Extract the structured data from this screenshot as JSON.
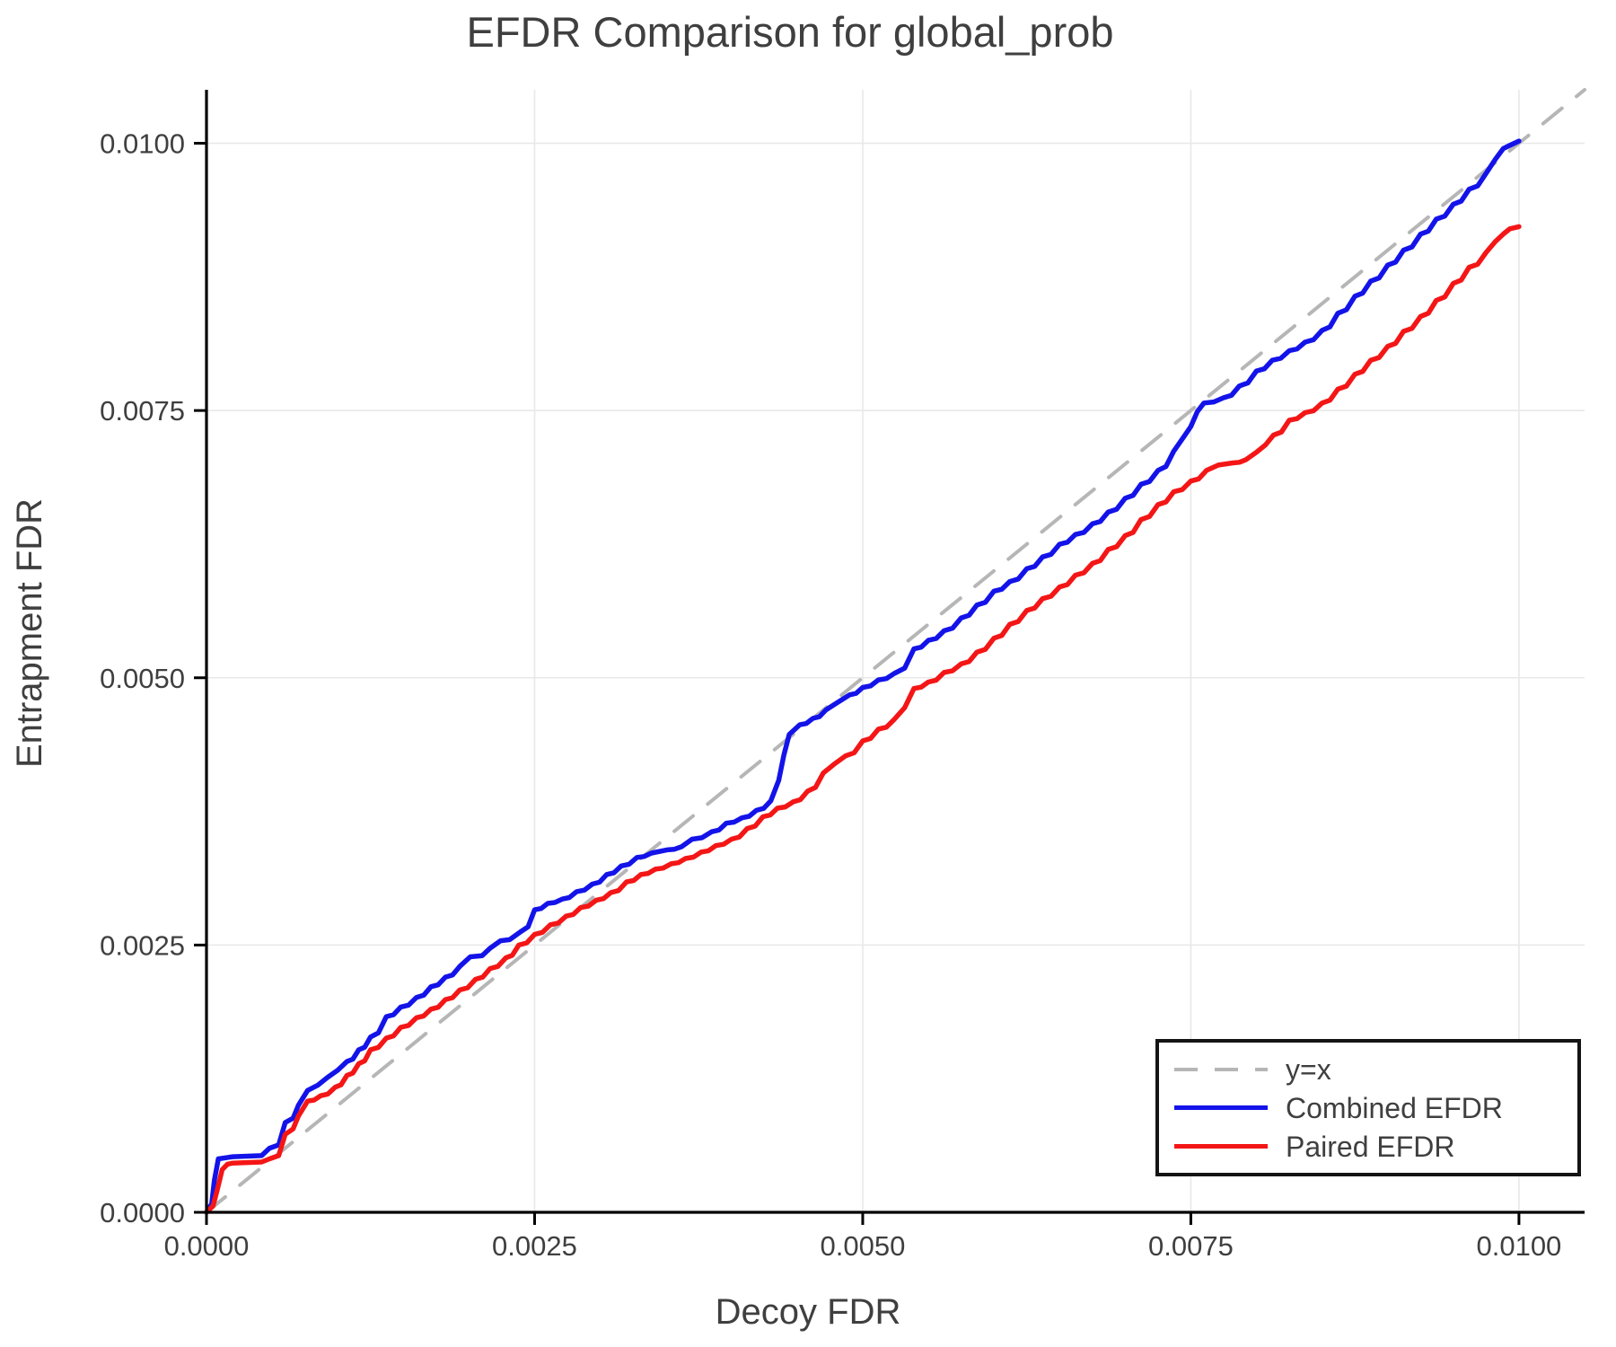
{
  "chart": {
    "title": "EFDR Comparison for global_prob",
    "xlabel": "Decoy FDR",
    "ylabel": "Entrapment FDR",
    "legend": [
      {
        "label": "y=x",
        "color": "#b6b6b6",
        "dash": true
      },
      {
        "label": "Combined EFDR",
        "color": "#1313e9",
        "dash": false
      },
      {
        "label": "Paired EFDR",
        "color": "#f41616",
        "dash": false
      }
    ]
  },
  "chart_data": {
    "type": "line",
    "title": "EFDR Comparison for global_prob",
    "xlabel": "Decoy FDR",
    "ylabel": "Entrapment FDR",
    "xlim": [
      0,
      0.0105
    ],
    "ylim": [
      0,
      0.0105
    ],
    "grid": true,
    "legend_position": "bottom-right",
    "x_ticks": {
      "values": [
        0,
        0.0025,
        0.005,
        0.0075,
        0.01
      ],
      "labels": [
        "0.0000",
        "0.0025",
        "0.0050",
        "0.0075",
        "0.0100"
      ]
    },
    "y_ticks": {
      "values": [
        0,
        0.0025,
        0.005,
        0.0075,
        0.01
      ],
      "labels": [
        "0.0000",
        "0.0025",
        "0.0050",
        "0.0075",
        "0.0100"
      ]
    },
    "series": [
      {
        "name": "y=x",
        "color": "#b6b6b6",
        "style": "dashed",
        "width": 4,
        "points": [
          [
            0,
            0
          ],
          [
            0.0105,
            0.0105
          ]
        ]
      },
      {
        "name": "Combined EFDR",
        "color": "#1313e9",
        "style": "solid",
        "width": 5.5,
        "points": [
          [
            0,
            0
          ],
          [
            4e-05,
            8e-05
          ],
          [
            6e-05,
            0.0003
          ],
          [
            9e-05,
            0.0005
          ],
          [
            0.0002,
            0.00052
          ],
          [
            0.00042,
            0.00053
          ],
          [
            0.00048,
            0.0006
          ],
          [
            0.00055,
            0.00063
          ],
          [
            0.0006,
            0.00084
          ],
          [
            0.00066,
            0.00088
          ],
          [
            0.0007,
            0.001
          ],
          [
            0.00077,
            0.00114
          ],
          [
            0.00085,
            0.00119
          ],
          [
            0.00092,
            0.00126
          ],
          [
            0.001,
            0.00133
          ],
          [
            0.00107,
            0.00141
          ],
          [
            0.00116,
            0.00152
          ],
          [
            0.00125,
            0.00164
          ],
          [
            0.00137,
            0.00183
          ],
          [
            0.00148,
            0.00192
          ],
          [
            0.0016,
            0.00201
          ],
          [
            0.00171,
            0.00211
          ],
          [
            0.00182,
            0.0022
          ],
          [
            0.00193,
            0.0023
          ],
          [
            0.00201,
            0.00239
          ],
          [
            0.0021,
            0.0024
          ],
          [
            0.00216,
            0.00247
          ],
          [
            0.00224,
            0.00254
          ],
          [
            0.00231,
            0.00255
          ],
          [
            0.0024,
            0.00263
          ],
          [
            0.0025,
            0.00283
          ],
          [
            0.0026,
            0.00289
          ],
          [
            0.00271,
            0.00293
          ],
          [
            0.00282,
            0.003
          ],
          [
            0.00294,
            0.00307
          ],
          [
            0.00305,
            0.00316
          ],
          [
            0.00316,
            0.00324
          ],
          [
            0.00328,
            0.00332
          ],
          [
            0.00339,
            0.00336
          ],
          [
            0.00351,
            0.00339
          ],
          [
            0.00362,
            0.00342
          ],
          [
            0.0037,
            0.00349
          ],
          [
            0.00385,
            0.00356
          ],
          [
            0.00396,
            0.00364
          ],
          [
            0.00408,
            0.00369
          ],
          [
            0.00419,
            0.00376
          ],
          [
            0.0043,
            0.00385
          ],
          [
            0.00436,
            0.00404
          ],
          [
            0.0044,
            0.00428
          ],
          [
            0.00444,
            0.00447
          ],
          [
            0.00452,
            0.00456
          ],
          [
            0.00462,
            0.00462
          ],
          [
            0.00472,
            0.0047
          ],
          [
            0.00481,
            0.00477
          ],
          [
            0.0049,
            0.00484
          ],
          [
            0.005,
            0.00491
          ],
          [
            0.00512,
            0.00498
          ],
          [
            0.00524,
            0.00504
          ],
          [
            0.00532,
            0.00509
          ],
          [
            0.00539,
            0.00527
          ],
          [
            0.0055,
            0.00535
          ],
          [
            0.00562,
            0.00544
          ],
          [
            0.00575,
            0.00556
          ],
          [
            0.00587,
            0.00568
          ],
          [
            0.006,
            0.00581
          ],
          [
            0.00612,
            0.0059
          ],
          [
            0.00625,
            0.00602
          ],
          [
            0.00637,
            0.00613
          ],
          [
            0.0065,
            0.00625
          ],
          [
            0.00662,
            0.00634
          ],
          [
            0.00675,
            0.00644
          ],
          [
            0.00687,
            0.00655
          ],
          [
            0.007,
            0.00668
          ],
          [
            0.00712,
            0.00681
          ],
          [
            0.00725,
            0.00694
          ],
          [
            0.00737,
            0.00712
          ],
          [
            0.00745,
            0.00726
          ],
          [
            0.0075,
            0.00735
          ],
          [
            0.00755,
            0.00749
          ],
          [
            0.0076,
            0.00757
          ],
          [
            0.00775,
            0.00762
          ],
          [
            0.00787,
            0.00773
          ],
          [
            0.008,
            0.00787
          ],
          [
            0.00812,
            0.00797
          ],
          [
            0.00825,
            0.00806
          ],
          [
            0.00837,
            0.00814
          ],
          [
            0.0085,
            0.00825
          ],
          [
            0.00862,
            0.00841
          ],
          [
            0.00875,
            0.00857
          ],
          [
            0.00887,
            0.00871
          ],
          [
            0.009,
            0.00886
          ],
          [
            0.00912,
            0.009
          ],
          [
            0.00925,
            0.00915
          ],
          [
            0.00937,
            0.00929
          ],
          [
            0.0095,
            0.00943
          ],
          [
            0.00962,
            0.00957
          ],
          [
            0.00975,
            0.00972
          ],
          [
            0.00982,
            0.00985
          ],
          [
            0.00988,
            0.00995
          ],
          [
            0.00993,
            0.00998
          ],
          [
            0.01,
            0.01002
          ]
        ]
      },
      {
        "name": "Paired EFDR",
        "color": "#f41616",
        "style": "solid",
        "width": 5.5,
        "points": [
          [
            0,
            0
          ],
          [
            5e-05,
            6e-05
          ],
          [
            8e-05,
            0.0002
          ],
          [
            0.00012,
            0.0004
          ],
          [
            0.00016,
            0.00045
          ],
          [
            0.0002,
            0.00046
          ],
          [
            0.00042,
            0.00047
          ],
          [
            0.00048,
            0.0005
          ],
          [
            0.00055,
            0.00053
          ],
          [
            0.0006,
            0.00073
          ],
          [
            0.00066,
            0.00078
          ],
          [
            0.0007,
            0.0009
          ],
          [
            0.00077,
            0.00104
          ],
          [
            0.00087,
            0.00109
          ],
          [
            0.00098,
            0.00117
          ],
          [
            0.00107,
            0.00128
          ],
          [
            0.00116,
            0.00139
          ],
          [
            0.00125,
            0.00152
          ],
          [
            0.00137,
            0.00163
          ],
          [
            0.00148,
            0.00173
          ],
          [
            0.0016,
            0.00182
          ],
          [
            0.00171,
            0.0019
          ],
          [
            0.00182,
            0.00199
          ],
          [
            0.00193,
            0.00208
          ],
          [
            0.00205,
            0.00218
          ],
          [
            0.00216,
            0.00228
          ],
          [
            0.00228,
            0.00238
          ],
          [
            0.00238,
            0.0025
          ],
          [
            0.0025,
            0.0026
          ],
          [
            0.00262,
            0.00269
          ],
          [
            0.00274,
            0.00277
          ],
          [
            0.00285,
            0.00285
          ],
          [
            0.00297,
            0.00292
          ],
          [
            0.00308,
            0.00299
          ],
          [
            0.0032,
            0.00309
          ],
          [
            0.00331,
            0.00316
          ],
          [
            0.00342,
            0.00321
          ],
          [
            0.00354,
            0.00326
          ],
          [
            0.00365,
            0.00331
          ],
          [
            0.00377,
            0.00337
          ],
          [
            0.00388,
            0.00343
          ],
          [
            0.004,
            0.00349
          ],
          [
            0.00412,
            0.00359
          ],
          [
            0.00424,
            0.0037
          ],
          [
            0.00435,
            0.00378
          ],
          [
            0.00447,
            0.00384
          ],
          [
            0.00458,
            0.00394
          ],
          [
            0.0047,
            0.00411
          ],
          [
            0.00478,
            0.00419
          ],
          [
            0.00487,
            0.00427
          ],
          [
            0.005,
            0.00441
          ],
          [
            0.00512,
            0.00452
          ],
          [
            0.00524,
            0.00461
          ],
          [
            0.00532,
            0.00472
          ],
          [
            0.00539,
            0.0049
          ],
          [
            0.0055,
            0.00496
          ],
          [
            0.00562,
            0.00505
          ],
          [
            0.00575,
            0.00513
          ],
          [
            0.00587,
            0.00524
          ],
          [
            0.006,
            0.00537
          ],
          [
            0.00612,
            0.0055
          ],
          [
            0.00625,
            0.00563
          ],
          [
            0.00637,
            0.00574
          ],
          [
            0.0065,
            0.00585
          ],
          [
            0.00662,
            0.00596
          ],
          [
            0.00675,
            0.00607
          ],
          [
            0.00687,
            0.0062
          ],
          [
            0.007,
            0.00633
          ],
          [
            0.00712,
            0.00648
          ],
          [
            0.00725,
            0.00662
          ],
          [
            0.00737,
            0.00674
          ],
          [
            0.0075,
            0.00684
          ],
          [
            0.00762,
            0.00694
          ],
          [
            0.00771,
            0.00699
          ],
          [
            0.00782,
            0.00701
          ],
          [
            0.00792,
            0.00704
          ],
          [
            0.008,
            0.00711
          ],
          [
            0.00807,
            0.00718
          ],
          [
            0.00813,
            0.00727
          ],
          [
            0.00825,
            0.00741
          ],
          [
            0.00837,
            0.00748
          ],
          [
            0.0085,
            0.00757
          ],
          [
            0.00862,
            0.0077
          ],
          [
            0.00875,
            0.00784
          ],
          [
            0.00887,
            0.00797
          ],
          [
            0.009,
            0.0081
          ],
          [
            0.00912,
            0.00824
          ],
          [
            0.00925,
            0.00838
          ],
          [
            0.00937,
            0.00853
          ],
          [
            0.0095,
            0.00869
          ],
          [
            0.00962,
            0.00884
          ],
          [
            0.00975,
            0.00898
          ],
          [
            0.00982,
            0.00908
          ],
          [
            0.00988,
            0.00915
          ],
          [
            0.00993,
            0.0092
          ],
          [
            0.01,
            0.00922
          ]
        ]
      }
    ]
  }
}
